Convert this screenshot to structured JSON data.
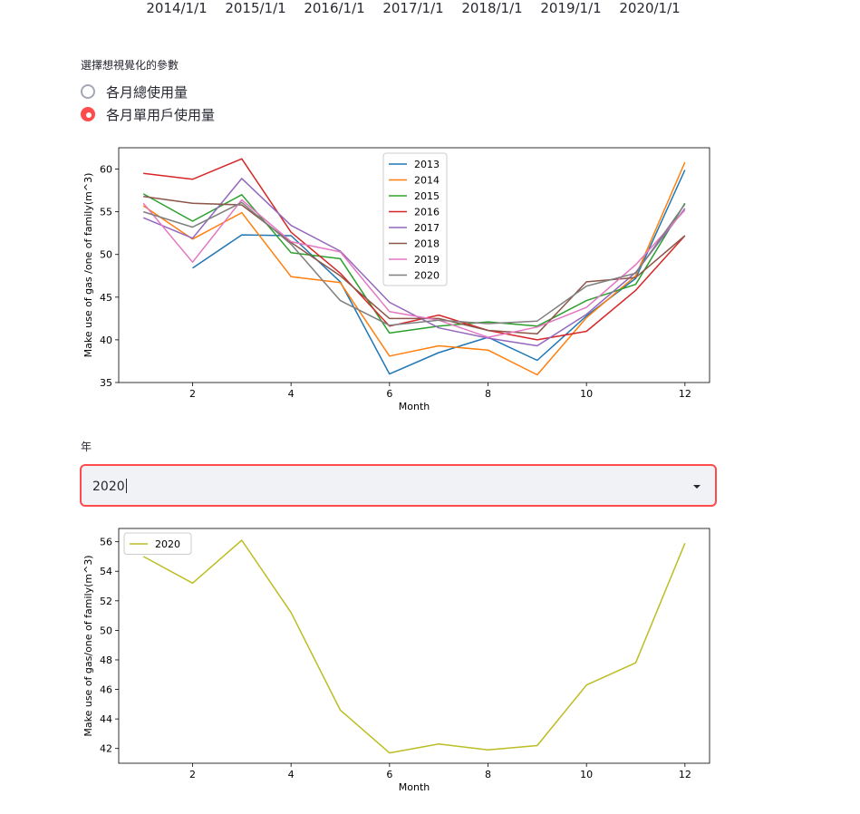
{
  "top_axis_labels": [
    "2014/1/1",
    "2015/1/1",
    "2016/1/1",
    "2017/1/1",
    "2018/1/1",
    "2019/1/1",
    "2020/1/1"
  ],
  "param_radio": {
    "label": "選擇想視覺化的參數",
    "options": [
      "各月總使用量",
      "各月單用戶使用量"
    ],
    "selected_index": 1
  },
  "year_select": {
    "label": "年",
    "value": "2020"
  },
  "colors": {
    "accent": "#ff4b4b",
    "select_bg": "#f0f2f6",
    "series": [
      "#1f77b4",
      "#ff7f0e",
      "#2ca02c",
      "#d62728",
      "#9467bd",
      "#8c564b",
      "#e377c2",
      "#7f7f7f"
    ],
    "single_series": "#bcbd22"
  },
  "chart_data": [
    {
      "type": "line",
      "xlabel": "Month",
      "ylabel": "Make use of gas /one of family(m^3)",
      "xlim": [
        0.5,
        12.5
      ],
      "ylim": [
        35,
        62.5
      ],
      "xticks": [
        2,
        4,
        6,
        8,
        10,
        12
      ],
      "yticks": [
        35,
        40,
        45,
        50,
        55,
        60
      ],
      "legend": "top-center",
      "grid": false,
      "series": [
        {
          "name": "2013",
          "x": [
            2,
            3,
            4,
            5,
            6,
            7,
            8,
            9,
            10,
            11,
            12
          ],
          "values": [
            48.4,
            52.3,
            52.2,
            46.8,
            36.0,
            38.5,
            40.3,
            37.6,
            42.8,
            47.2,
            59.9
          ]
        },
        {
          "name": "2014",
          "x": [
            1,
            2,
            3,
            4,
            5,
            6,
            7,
            8,
            9,
            10,
            11,
            12
          ],
          "values": [
            55.7,
            51.8,
            54.9,
            47.4,
            46.7,
            38.1,
            39.3,
            38.8,
            35.9,
            42.6,
            47.5,
            60.8
          ]
        },
        {
          "name": "2015",
          "x": [
            1,
            2,
            3,
            4,
            5,
            6,
            7,
            8,
            9,
            10,
            11,
            12
          ],
          "values": [
            57.1,
            53.9,
            57.0,
            50.2,
            49.5,
            40.8,
            41.6,
            42.1,
            41.6,
            44.6,
            46.5,
            56.0
          ]
        },
        {
          "name": "2016",
          "x": [
            1,
            2,
            3,
            4,
            5,
            6,
            7,
            8,
            9,
            10,
            11,
            12
          ],
          "values": [
            59.5,
            58.8,
            61.2,
            52.6,
            47.8,
            41.6,
            42.9,
            41.1,
            40.0,
            41.0,
            45.8,
            52.2
          ]
        },
        {
          "name": "2017",
          "x": [
            1,
            2,
            3,
            4,
            5,
            6,
            7,
            8,
            9,
            10,
            11,
            12
          ],
          "values": [
            54.3,
            51.9,
            58.9,
            53.4,
            50.4,
            44.4,
            41.4,
            40.2,
            39.3,
            43.0,
            47.9,
            55.4
          ]
        },
        {
          "name": "2018",
          "x": [
            1,
            2,
            3,
            4,
            5,
            6,
            7,
            8,
            9,
            10,
            11,
            12
          ],
          "values": [
            56.8,
            56.0,
            55.8,
            51.4,
            47.5,
            42.5,
            42.5,
            41.1,
            40.7,
            46.8,
            47.3,
            52.2
          ]
        },
        {
          "name": "2019",
          "x": [
            1,
            2,
            3,
            4,
            5,
            6,
            7,
            8,
            9,
            10,
            11,
            12
          ],
          "values": [
            56.0,
            49.1,
            56.4,
            51.5,
            50.3,
            43.3,
            42.3,
            40.3,
            41.5,
            43.8,
            48.8,
            55.2
          ]
        },
        {
          "name": "2020",
          "x": [
            1,
            2,
            3,
            4,
            5,
            6,
            7,
            8,
            9,
            10,
            11,
            12
          ],
          "values": [
            55.0,
            53.2,
            56.1,
            51.2,
            44.6,
            41.7,
            42.3,
            41.9,
            42.2,
            46.3,
            47.8,
            55.9
          ]
        }
      ]
    },
    {
      "type": "line",
      "xlabel": "Month",
      "ylabel": "Make use of gas/one of family(m^3)",
      "xlim": [
        0.5,
        12.5
      ],
      "ylim": [
        41,
        56.9
      ],
      "xticks": [
        2,
        4,
        6,
        8,
        10,
        12
      ],
      "yticks": [
        42,
        44,
        46,
        48,
        50,
        52,
        54,
        56
      ],
      "legend": "top-left",
      "grid": false,
      "series": [
        {
          "name": "2020",
          "x": [
            1,
            2,
            3,
            4,
            5,
            6,
            7,
            8,
            9,
            10,
            11,
            12
          ],
          "values": [
            55.0,
            53.2,
            56.1,
            51.2,
            44.6,
            41.7,
            42.3,
            41.9,
            42.2,
            46.3,
            47.8,
            55.9
          ]
        }
      ]
    }
  ]
}
